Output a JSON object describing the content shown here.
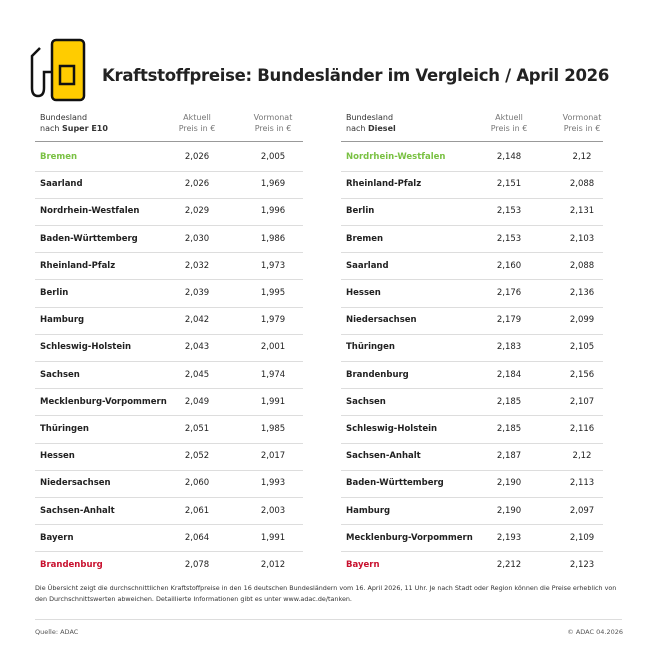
{
  "header": {
    "title": "Kraftstoffpreise: Bundesländer im Vergleich / April 2026"
  },
  "tables": [
    {
      "columns": [
        [
          "Bundesland",
          "nach",
          "Super E10"
        ],
        [
          "Aktuell",
          "Preis in €"
        ],
        [
          "Vormonat",
          "Preis in €"
        ]
      ],
      "rows": [
        [
          "Bremen",
          "2,026",
          "2,005"
        ],
        [
          "Saarland",
          "2,026",
          "1,969"
        ],
        [
          "Nordrhein-Westfalen",
          "2,029",
          "1,996"
        ],
        [
          "Baden-Württemberg",
          "2,030",
          "1,986"
        ],
        [
          "Rheinland-Pfalz",
          "2,032",
          "1,973"
        ],
        [
          "Berlin",
          "2,039",
          "1,995"
        ],
        [
          "Hamburg",
          "2,042",
          "1,979"
        ],
        [
          "Schleswig-Holstein",
          "2,043",
          "2,001"
        ],
        [
          "Sachsen",
          "2,045",
          "1,974"
        ],
        [
          "Mecklenburg-Vorpommern",
          "2,049",
          "1,991"
        ],
        [
          "Thüringen",
          "2,051",
          "1,985"
        ],
        [
          "Hessen",
          "2,052",
          "2,017"
        ],
        [
          "Niedersachsen",
          "2,060",
          "1,993"
        ],
        [
          "Sachsen-Anhalt",
          "2,061",
          "2,003"
        ],
        [
          "Bayern",
          "2,064",
          "1,991"
        ],
        [
          "Brandenburg",
          "2,078",
          "2,012"
        ]
      ]
    },
    {
      "columns": [
        [
          "Bundesland",
          "nach",
          "Diesel"
        ],
        [
          "Aktuell",
          "Preis in €"
        ],
        [
          "Vormonat",
          "Preis in €"
        ]
      ],
      "rows": [
        [
          "Nordrhein-Westfalen",
          "2,148",
          "2,12"
        ],
        [
          "Rheinland-Pfalz",
          "2,151",
          "2,088"
        ],
        [
          "Berlin",
          "2,153",
          "2,131"
        ],
        [
          "Bremen",
          "2,153",
          "2,103"
        ],
        [
          "Saarland",
          "2,160",
          "2,088"
        ],
        [
          "Hessen",
          "2,176",
          "2,136"
        ],
        [
          "Niedersachsen",
          "2,179",
          "2,099"
        ],
        [
          "Thüringen",
          "2,183",
          "2,105"
        ],
        [
          "Brandenburg",
          "2,184",
          "2,156"
        ],
        [
          "Sachsen",
          "2,185",
          "2,107"
        ],
        [
          "Schleswig-Holstein",
          "2,185",
          "2,116"
        ],
        [
          "Sachsen-Anhalt",
          "2,187",
          "2,12"
        ],
        [
          "Baden-Württemberg",
          "2,190",
          "2,113"
        ],
        [
          "Hamburg",
          "2,190",
          "2,097"
        ],
        [
          "Mecklenburg-Vorpommern",
          "2,193",
          "2,109"
        ],
        [
          "Bayern",
          "2,212",
          "2,123"
        ]
      ]
    }
  ],
  "footnote": "Die Übersicht zeigt die durchschnittlichen Kraftstoffpreise in den 16 deutschen Bundesländern vom 16. April 2026, 11 Uhr. Je nach Stadt oder Region können die Preise erheblich von den Durchschnittswerten abweichen. Detaillierte Informationen gibt es unter www.adac.de/tanken.",
  "source": "Quelle: ADAC",
  "copyright": "© ADAC 04.2026"
}
